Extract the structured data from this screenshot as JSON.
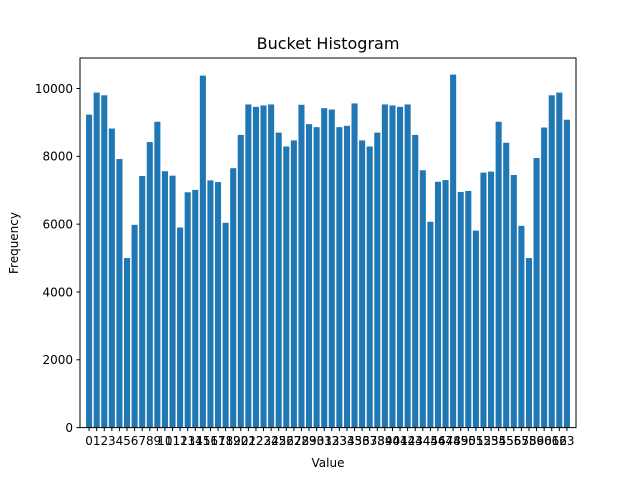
{
  "chart_data": {
    "type": "bar",
    "title": "Bucket Histogram",
    "xlabel": "Value",
    "ylabel": "Frequency",
    "bar_color": "#1f77b4",
    "grid": false,
    "ylim": [
      0,
      10900
    ],
    "yticks": [
      0,
      2000,
      4000,
      6000,
      8000,
      10000
    ],
    "categories": [
      "0",
      "1",
      "2",
      "3",
      "4",
      "5",
      "6",
      "7",
      "8",
      "9",
      "10",
      "11",
      "12",
      "13",
      "14",
      "15",
      "16",
      "17",
      "18",
      "19",
      "20",
      "21",
      "22",
      "23",
      "24",
      "25",
      "26",
      "27",
      "28",
      "29",
      "30",
      "31",
      "32",
      "33",
      "34",
      "35",
      "36",
      "37",
      "38",
      "39",
      "40",
      "41",
      "42",
      "43",
      "44",
      "45",
      "46",
      "47",
      "48",
      "49",
      "50",
      "51",
      "52",
      "53",
      "54",
      "55",
      "56",
      "57",
      "58",
      "59",
      "60",
      "61",
      "62",
      "63"
    ],
    "values": [
      9230,
      9880,
      9800,
      8820,
      7920,
      5000,
      5980,
      7420,
      8420,
      9020,
      7560,
      7430,
      5900,
      6940,
      7010,
      10380,
      7290,
      7240,
      6040,
      7650,
      8630,
      9530,
      9460,
      9500,
      9530,
      8700,
      8290,
      8470,
      9520,
      8950,
      8860,
      9420,
      9380,
      8860,
      8900,
      9560,
      8470,
      8290,
      8700,
      9530,
      9500,
      9460,
      9530,
      8630,
      7590,
      6070,
      7250,
      7300,
      10410,
      6950,
      6980,
      5810,
      7520,
      7550,
      9020,
      8400,
      7450,
      5950,
      5000,
      7950,
      8850,
      9800,
      9880,
      9080
    ]
  }
}
